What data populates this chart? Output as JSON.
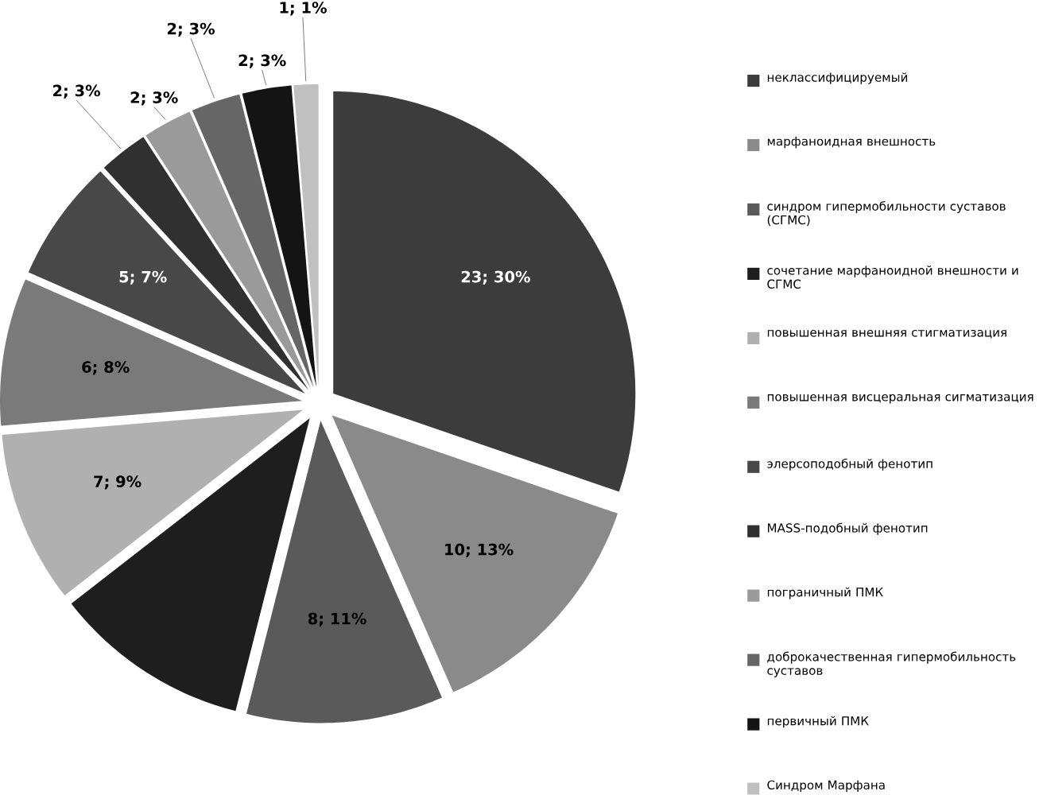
{
  "chart_data": {
    "type": "pie",
    "categories": [
      "неклассифицируемый",
      "марфаноидная внешность",
      "синдром гипермобильности суставов (СГМС)",
      "сочетание марфаноидной внешности и СГМС",
      "повышенная внешняя стигматизация",
      "повышенная висцеральная сигматизация",
      "элерсоподобный фенотип",
      "MASS-подобный фенотип",
      "пограничный ПМК",
      "доброкачественная гипермобильность суставов",
      "первичный ПМК",
      "Синдром Марфана"
    ],
    "values": [
      23,
      10,
      8,
      8,
      7,
      6,
      5,
      2,
      2,
      2,
      2,
      1
    ],
    "value_labels": [
      "23; 30%",
      "10; 13%",
      "8; 11%",
      null,
      "7; 9%",
      "6; 8%",
      "5; 7%",
      "2; 3%",
      "2; 3%",
      "2; 3%",
      "2; 3%",
      "1; 1%"
    ],
    "colors": [
      "#3c3c3c",
      "#8a8a8a",
      "#5a5a5a",
      "#1e1e1e",
      "#b0b0b0",
      "#7a7a7a",
      "#484848",
      "#303030",
      "#9a9a9a",
      "#666666",
      "#141414",
      "#c0c0c0"
    ],
    "legend": "right"
  }
}
